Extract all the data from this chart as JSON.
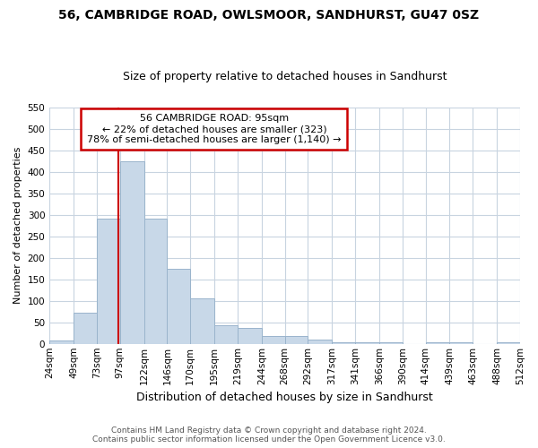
{
  "title": "56, CAMBRIDGE ROAD, OWLSMOOR, SANDHURST, GU47 0SZ",
  "subtitle": "Size of property relative to detached houses in Sandhurst",
  "xlabel": "Distribution of detached houses by size in Sandhurst",
  "ylabel": "Number of detached properties",
  "bin_edges": [
    24,
    49,
    73,
    97,
    122,
    146,
    170,
    195,
    219,
    244,
    268,
    292,
    317,
    341,
    366,
    390,
    414,
    439,
    463,
    488,
    512
  ],
  "bar_heights": [
    8,
    72,
    290,
    425,
    290,
    175,
    105,
    43,
    38,
    18,
    18,
    9,
    4,
    4,
    4,
    0,
    4,
    4,
    0,
    4
  ],
  "bar_color": "#c8d8e8",
  "bar_edgecolor": "#9ab4cc",
  "property_size": 95,
  "vline_color": "#cc0000",
  "annotation_title": "56 CAMBRIDGE ROAD: 95sqm",
  "annotation_line1": "← 22% of detached houses are smaller (323)",
  "annotation_line2": "78% of semi-detached houses are larger (1,140) →",
  "annotation_box_facecolor": "#ffffff",
  "annotation_box_edgecolor": "#cc0000",
  "ylim": [
    0,
    550
  ],
  "yticks": [
    0,
    50,
    100,
    150,
    200,
    250,
    300,
    350,
    400,
    450,
    500,
    550
  ],
  "bg_color": "#ffffff",
  "plot_bg_color": "#ffffff",
  "grid_color": "#c8d4e0",
  "footer_line1": "Contains HM Land Registry data © Crown copyright and database right 2024.",
  "footer_line2": "Contains public sector information licensed under the Open Government Licence v3.0.",
  "title_fontsize": 10,
  "subtitle_fontsize": 9,
  "xlabel_fontsize": 9,
  "ylabel_fontsize": 8,
  "tick_fontsize": 7.5,
  "annotation_fontsize": 8,
  "footer_fontsize": 6.5
}
